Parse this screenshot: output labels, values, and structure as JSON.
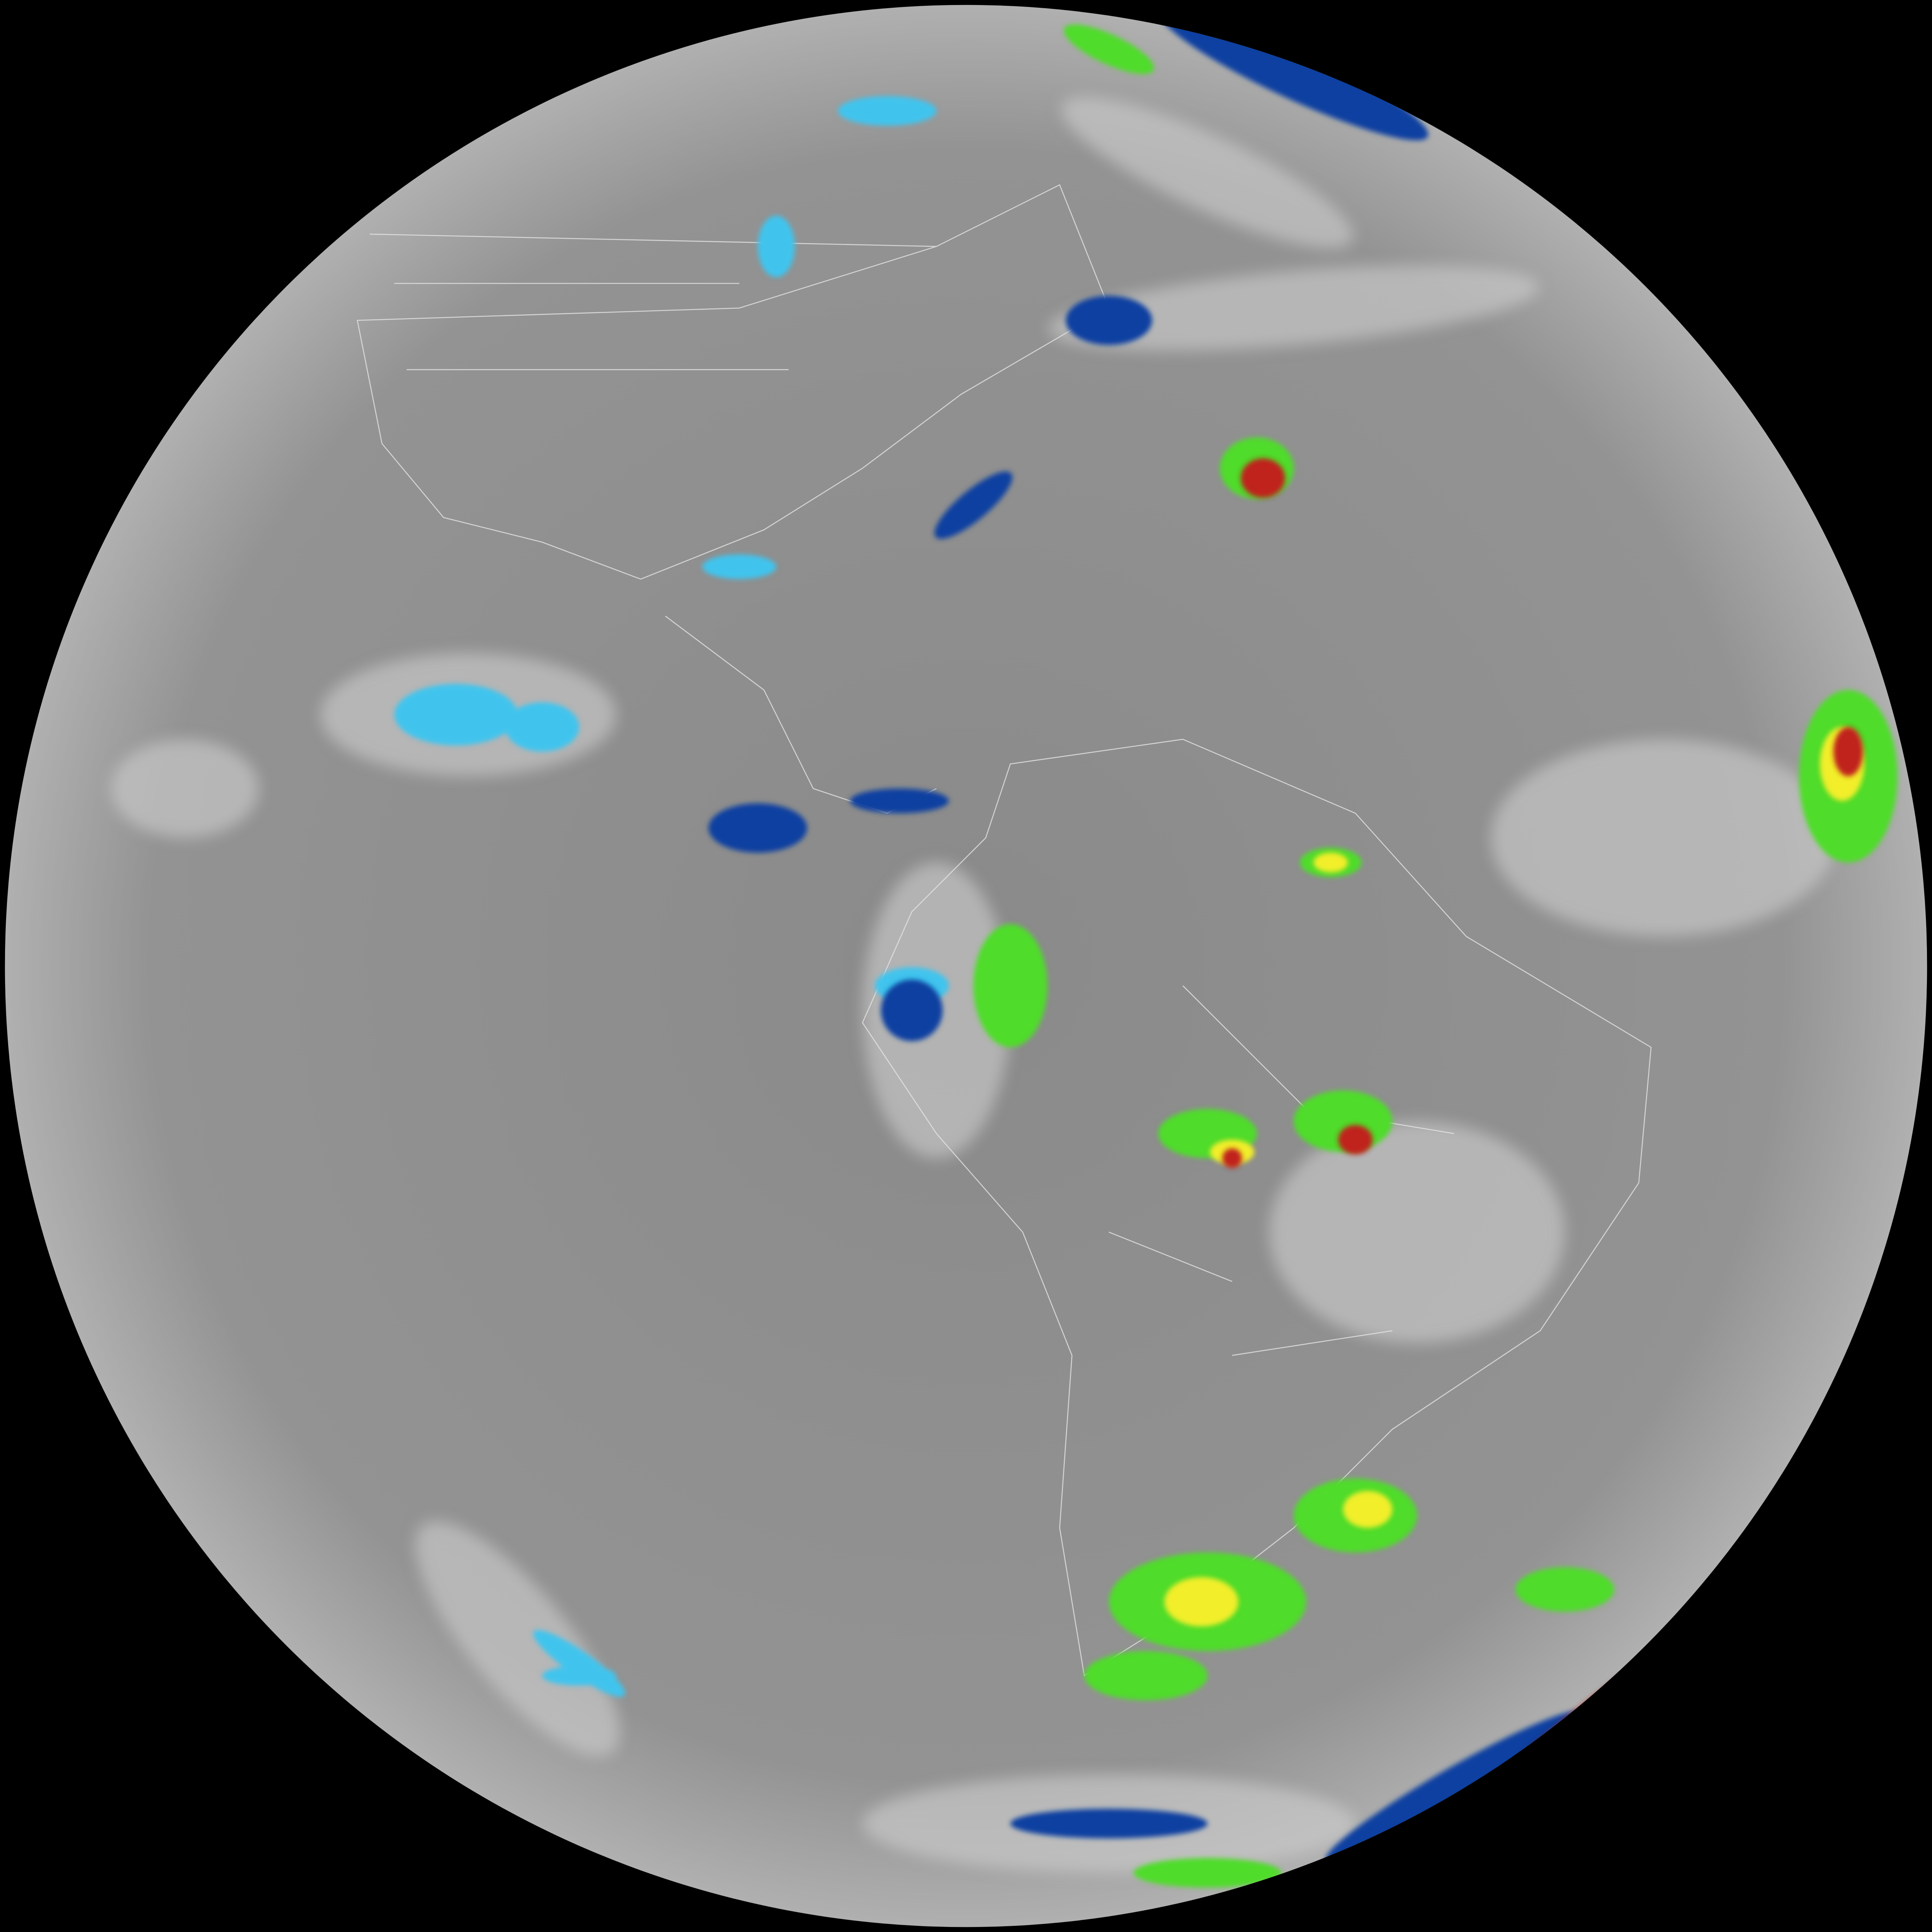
{
  "image": {
    "kind": "full-disk infrared satellite view of Earth",
    "colors": {
      "space": "#000000",
      "ocean_ir": "#8c8c8c",
      "cloud_cold": "#d6d6d6",
      "cyan": "#3fc4ee",
      "blue": "#0a3fa0",
      "green": "#4fdc2a",
      "yellow": "#f2ee2a",
      "red": "#c0201a",
      "border_lines": "#e6e6e6"
    }
  }
}
